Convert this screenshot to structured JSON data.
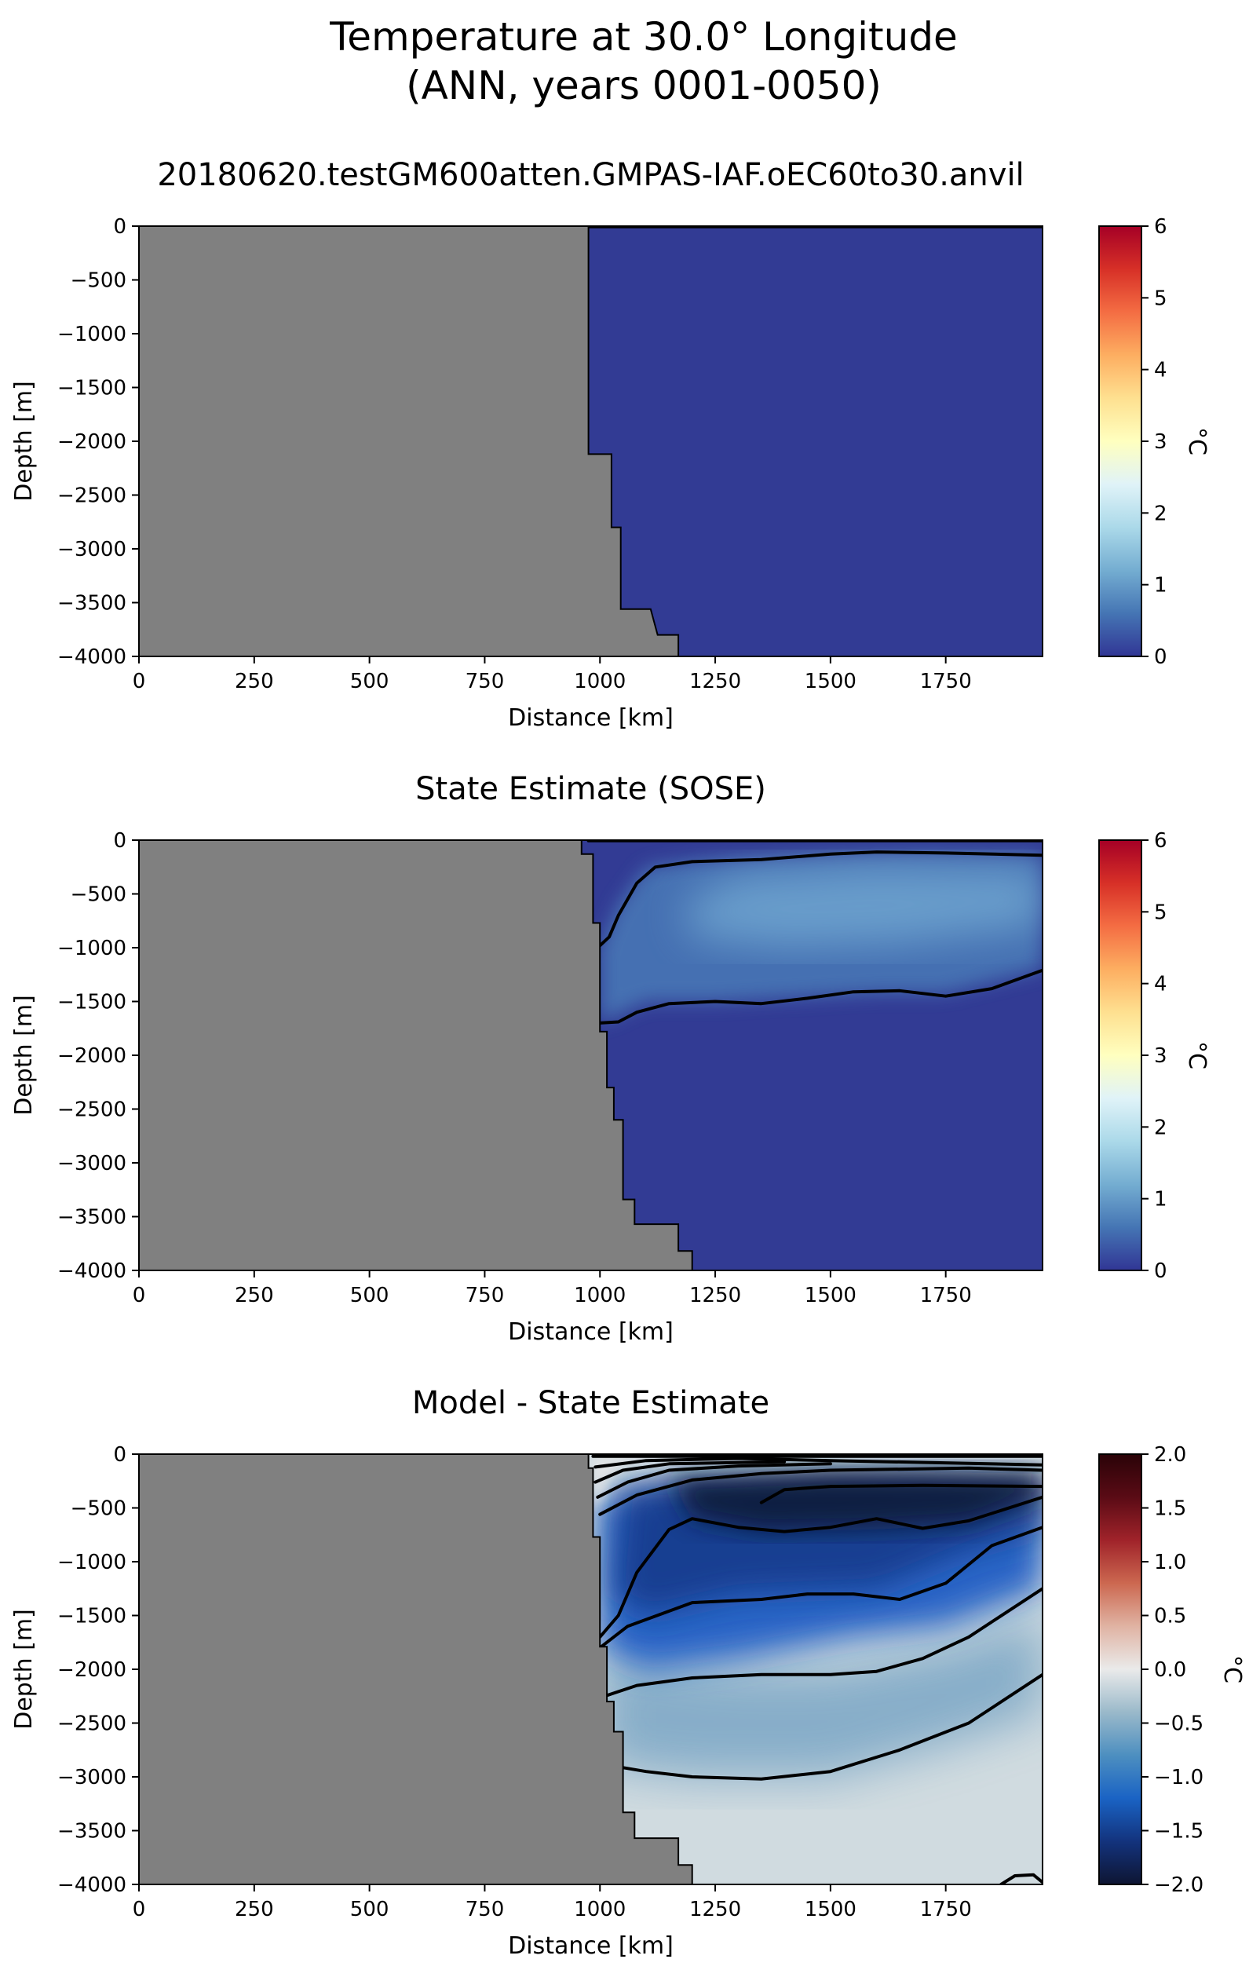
{
  "figure": {
    "title_line1": "Temperature at 30.0° Longitude",
    "title_line2": "(ANN, years 0001-0050)"
  },
  "chart_data": [
    {
      "type": "heatmap",
      "title": "20180620.testGM600atten.GMPAS-IAF.oEC60to30.anvil",
      "xlabel": "Distance [km]",
      "ylabel": "Depth [m]",
      "xlim": [
        0,
        1960
      ],
      "ylim": [
        -4000,
        0
      ],
      "xticks": [
        "0",
        "250",
        "500",
        "750",
        "1000",
        "1250",
        "1500",
        "1750"
      ],
      "yticks": [
        "0",
        "−500",
        "−1000",
        "−1500",
        "−2000",
        "−2500",
        "−3000",
        "−3500",
        "−4000"
      ],
      "colorbar": {
        "label": "°C",
        "range": [
          0,
          6
        ],
        "ticks": [
          "0",
          "1",
          "2",
          "3",
          "4",
          "5",
          "6"
        ],
        "colors": [
          "#313695",
          "#4575b4",
          "#74add1",
          "#abd9e9",
          "#e0f3f8",
          "#ffffbf",
          "#fee090",
          "#fdae61",
          "#f46d43",
          "#d73027",
          "#a50026"
        ]
      },
      "land_color": "#808080",
      "bathymetry": [
        [
          975,
          0
        ],
        [
          975,
          -2120
        ],
        [
          1025,
          -2120
        ],
        [
          1025,
          -2800
        ],
        [
          1045,
          -2800
        ],
        [
          1045,
          -3560
        ],
        [
          1110,
          -3560
        ],
        [
          1125,
          -3800
        ],
        [
          1170,
          -3800
        ],
        [
          1170,
          -4000
        ]
      ],
      "field": {
        "background": "#323b94",
        "layers": []
      },
      "contours": [
        [
          [
            975,
            -5
          ],
          [
            1960,
            -5
          ]
        ]
      ]
    },
    {
      "type": "heatmap",
      "title": "State Estimate (SOSE)",
      "xlabel": "Distance [km]",
      "ylabel": "Depth [m]",
      "xlim": [
        0,
        1960
      ],
      "ylim": [
        -4000,
        0
      ],
      "xticks": [
        "0",
        "250",
        "500",
        "750",
        "1000",
        "1250",
        "1500",
        "1750"
      ],
      "yticks": [
        "0",
        "−500",
        "−1000",
        "−1500",
        "−2000",
        "−2500",
        "−3000",
        "−3500",
        "−4000"
      ],
      "colorbar": {
        "label": "°C",
        "range": [
          0,
          6
        ],
        "ticks": [
          "0",
          "1",
          "2",
          "3",
          "4",
          "5",
          "6"
        ],
        "colors": [
          "#313695",
          "#4575b4",
          "#74add1",
          "#abd9e9",
          "#e0f3f8",
          "#ffffbf",
          "#fee090",
          "#fdae61",
          "#f46d43",
          "#d73027",
          "#a50026"
        ]
      },
      "land_color": "#808080",
      "bathymetry": [
        [
          960,
          0
        ],
        [
          960,
          -130
        ],
        [
          985,
          -130
        ],
        [
          985,
          -770
        ],
        [
          1000,
          -770
        ],
        [
          1000,
          -1780
        ],
        [
          1015,
          -1780
        ],
        [
          1015,
          -2300
        ],
        [
          1030,
          -2300
        ],
        [
          1030,
          -2600
        ],
        [
          1050,
          -2600
        ],
        [
          1050,
          -3340
        ],
        [
          1075,
          -3340
        ],
        [
          1075,
          -3570
        ],
        [
          1170,
          -3570
        ],
        [
          1170,
          -3820
        ],
        [
          1200,
          -3820
        ],
        [
          1200,
          -4000
        ]
      ],
      "field": {
        "background": "#323b94",
        "layers": [
          {
            "color": "#4a7ab8",
            "opacity": 0.85,
            "blur": 12,
            "points": [
              [
                1000,
                -1000
              ],
              [
                1040,
                -600
              ],
              [
                1100,
                -250
              ],
              [
                1200,
                -190
              ],
              [
                1500,
                -130
              ],
              [
                1700,
                -110
              ],
              [
                1960,
                -130
              ],
              [
                1960,
                -1200
              ],
              [
                1750,
                -1420
              ],
              [
                1600,
                -1420
              ],
              [
                1250,
                -1500
              ],
              [
                1100,
                -1500
              ],
              [
                1000,
                -1700
              ]
            ]
          },
          {
            "color": "#78b0d6",
            "opacity": 0.7,
            "blur": 26,
            "points": [
              [
                1180,
                -600
              ],
              [
                1300,
                -320
              ],
              [
                1600,
                -240
              ],
              [
                1960,
                -280
              ],
              [
                1960,
                -800
              ],
              [
                1650,
                -960
              ],
              [
                1400,
                -1000
              ],
              [
                1200,
                -900
              ]
            ]
          }
        ]
      },
      "contours": [
        [
          [
            975,
            -5
          ],
          [
            1960,
            -5
          ]
        ],
        [
          [
            1000,
            -980
          ],
          [
            1020,
            -900
          ],
          [
            1040,
            -700
          ],
          [
            1080,
            -400
          ],
          [
            1120,
            -250
          ],
          [
            1200,
            -200
          ],
          [
            1350,
            -180
          ],
          [
            1500,
            -130
          ],
          [
            1600,
            -110
          ],
          [
            1750,
            -120
          ],
          [
            1960,
            -140
          ]
        ],
        [
          [
            1000,
            -1700
          ],
          [
            1040,
            -1690
          ],
          [
            1080,
            -1600
          ],
          [
            1150,
            -1520
          ],
          [
            1250,
            -1500
          ],
          [
            1350,
            -1520
          ],
          [
            1450,
            -1470
          ],
          [
            1550,
            -1410
          ],
          [
            1650,
            -1400
          ],
          [
            1750,
            -1450
          ],
          [
            1850,
            -1380
          ],
          [
            1960,
            -1210
          ]
        ]
      ]
    },
    {
      "type": "heatmap",
      "title": "Model - State Estimate",
      "xlabel": "Distance [km]",
      "ylabel": "Depth [m]",
      "xlim": [
        0,
        1960
      ],
      "ylim": [
        -4000,
        0
      ],
      "xticks": [
        "0",
        "250",
        "500",
        "750",
        "1000",
        "1250",
        "1500",
        "1750"
      ],
      "yticks": [
        "0",
        "−500",
        "−1000",
        "−1500",
        "−2000",
        "−2500",
        "−3000",
        "−3500",
        "−4000"
      ],
      "colorbar": {
        "label": "°C",
        "range": [
          -2.0,
          2.0
        ],
        "ticks": [
          "−2.0",
          "−1.5",
          "−1.0",
          "−0.5",
          "0.0",
          "0.5",
          "1.0",
          "1.5",
          "2.0"
        ],
        "colors": [
          "#0e1532",
          "#13337d",
          "#1a63c4",
          "#4d8fc0",
          "#9ab9ca",
          "#eaeaea",
          "#e0b3a3",
          "#cc6850",
          "#a0232a",
          "#5a0b15",
          "#2a0308"
        ]
      },
      "land_color": "#808080",
      "bathymetry": [
        [
          975,
          0
        ],
        [
          975,
          -130
        ],
        [
          985,
          -130
        ],
        [
          985,
          -770
        ],
        [
          1000,
          -770
        ],
        [
          1000,
          -1790
        ],
        [
          1015,
          -1790
        ],
        [
          1015,
          -2300
        ],
        [
          1030,
          -2300
        ],
        [
          1030,
          -2580
        ],
        [
          1050,
          -2580
        ],
        [
          1050,
          -3330
        ],
        [
          1075,
          -3330
        ],
        [
          1075,
          -3570
        ],
        [
          1170,
          -3570
        ],
        [
          1170,
          -3820
        ],
        [
          1200,
          -3820
        ],
        [
          1200,
          -4000
        ]
      ],
      "field": {
        "background": "#d0dbe0",
        "layers": [
          {
            "color": "#7aa6c5",
            "opacity": 0.85,
            "blur": 30,
            "points": [
              [
                1000,
                -1800
              ],
              [
                1100,
                -1900
              ],
              [
                1300,
                -2000
              ],
              [
                1500,
                -2000
              ],
              [
                1750,
                -1800
              ],
              [
                1960,
                -1500
              ],
              [
                1960,
                -2400
              ],
              [
                1750,
                -2700
              ],
              [
                1500,
                -3000
              ],
              [
                1200,
                -3000
              ],
              [
                1000,
                -2900
              ]
            ]
          },
          {
            "color": "#1c5cc4",
            "opacity": 0.92,
            "blur": 20,
            "points": [
              [
                1000,
                -400
              ],
              [
                1200,
                -350
              ],
              [
                1600,
                -600
              ],
              [
                1960,
                -500
              ],
              [
                1960,
                -1250
              ],
              [
                1750,
                -1600
              ],
              [
                1550,
                -1700
              ],
              [
                1300,
                -1900
              ],
              [
                1100,
                -2000
              ],
              [
                1000,
                -1800
              ]
            ]
          },
          {
            "color": "#123a8c",
            "opacity": 0.9,
            "blur": 20,
            "points": [
              [
                1050,
                -300
              ],
              [
                1300,
                -250
              ],
              [
                1700,
                -200
              ],
              [
                1960,
                -250
              ],
              [
                1960,
                -700
              ],
              [
                1800,
                -900
              ],
              [
                1600,
                -1250
              ],
              [
                1300,
                -1300
              ],
              [
                1100,
                -1500
              ],
              [
                1030,
                -1300
              ]
            ]
          },
          {
            "color": "#0f1a3c",
            "opacity": 0.95,
            "blur": 16,
            "points": [
              [
                1150,
                -230
              ],
              [
                1500,
                -160
              ],
              [
                1960,
                -180
              ],
              [
                1960,
                -400
              ],
              [
                1800,
                -650
              ],
              [
                1600,
                -700
              ],
              [
                1350,
                -720
              ],
              [
                1200,
                -600
              ]
            ]
          },
          {
            "color": "#e6e6e6",
            "opacity": 0.9,
            "blur": 8,
            "points": [
              [
                985,
                -20
              ],
              [
                1100,
                -20
              ],
              [
                1200,
                -40
              ],
              [
                1060,
                -80
              ],
              [
                1020,
                -200
              ],
              [
                1000,
                -450
              ],
              [
                985,
                -450
              ]
            ]
          }
        ]
      },
      "contours": [
        [
          [
            985,
            -20
          ],
          [
            1960,
            -20
          ]
        ],
        [
          [
            990,
            -120
          ],
          [
            1100,
            -60
          ],
          [
            1300,
            -40
          ],
          [
            1500,
            -60
          ],
          [
            1960,
            -100
          ]
        ],
        [
          [
            990,
            -260
          ],
          [
            1050,
            -150
          ],
          [
            1150,
            -90
          ],
          [
            1400,
            -70
          ]
        ],
        [
          [
            995,
            -400
          ],
          [
            1060,
            -260
          ],
          [
            1150,
            -150
          ],
          [
            1300,
            -110
          ],
          [
            1500,
            -90
          ]
        ],
        [
          [
            1000,
            -560
          ],
          [
            1080,
            -380
          ],
          [
            1200,
            -240
          ],
          [
            1350,
            -180
          ],
          [
            1500,
            -150
          ],
          [
            1800,
            -130
          ],
          [
            1960,
            -150
          ]
        ],
        [
          [
            1350,
            -450
          ],
          [
            1400,
            -330
          ],
          [
            1500,
            -300
          ],
          [
            1700,
            -290
          ],
          [
            1960,
            -300
          ]
        ],
        [
          [
            1000,
            -1700
          ],
          [
            1040,
            -1500
          ],
          [
            1080,
            -1100
          ],
          [
            1150,
            -700
          ],
          [
            1200,
            -600
          ],
          [
            1300,
            -680
          ],
          [
            1400,
            -720
          ],
          [
            1500,
            -680
          ],
          [
            1600,
            -600
          ],
          [
            1700,
            -690
          ],
          [
            1800,
            -620
          ],
          [
            1960,
            -400
          ]
        ],
        [
          [
            1000,
            -1800
          ],
          [
            1060,
            -1600
          ],
          [
            1200,
            -1380
          ],
          [
            1350,
            -1350
          ],
          [
            1450,
            -1300
          ],
          [
            1550,
            -1300
          ],
          [
            1650,
            -1350
          ],
          [
            1750,
            -1200
          ],
          [
            1850,
            -850
          ],
          [
            1960,
            -680
          ]
        ],
        [
          [
            1010,
            -2250
          ],
          [
            1080,
            -2150
          ],
          [
            1200,
            -2080
          ],
          [
            1350,
            -2050
          ],
          [
            1500,
            -2050
          ],
          [
            1600,
            -2020
          ],
          [
            1700,
            -1900
          ],
          [
            1800,
            -1700
          ],
          [
            1960,
            -1250
          ]
        ],
        [
          [
            1030,
            -2900
          ],
          [
            1100,
            -2950
          ],
          [
            1200,
            -3000
          ],
          [
            1350,
            -3020
          ],
          [
            1500,
            -2950
          ],
          [
            1650,
            -2750
          ],
          [
            1800,
            -2500
          ],
          [
            1960,
            -2050
          ]
        ],
        [
          [
            1870,
            -4000
          ],
          [
            1900,
            -3920
          ],
          [
            1940,
            -3910
          ],
          [
            1960,
            -3980
          ]
        ]
      ]
    }
  ]
}
